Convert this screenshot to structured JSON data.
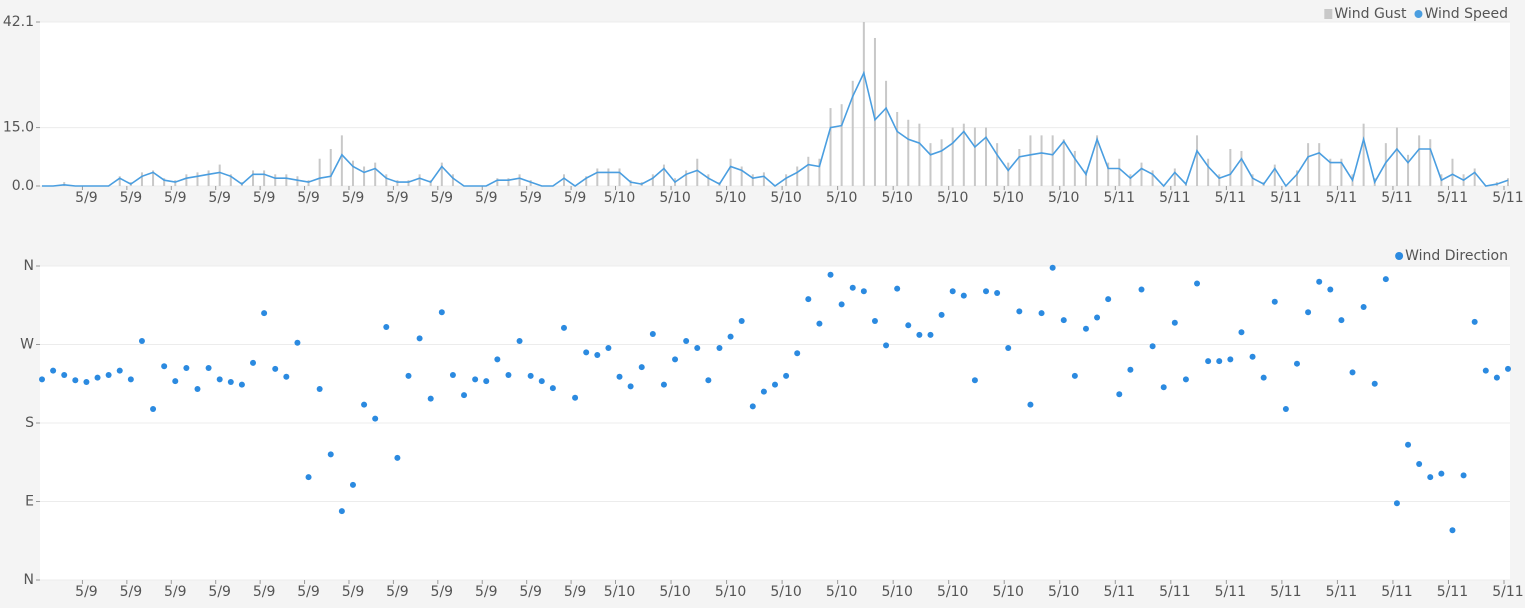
{
  "chart_data": [
    {
      "type": "combo",
      "categories": [
        null,
        null,
        null,
        null,
        "5/9",
        null,
        null,
        null,
        "5/9",
        null,
        null,
        null,
        "5/9",
        null,
        null,
        null,
        "5/9",
        null,
        null,
        null,
        "5/9",
        null,
        null,
        null,
        "5/9",
        null,
        null,
        null,
        "5/9",
        null,
        null,
        null,
        "5/9",
        null,
        null,
        null,
        "5/9",
        null,
        null,
        null,
        "5/9",
        null,
        null,
        null,
        "5/9",
        null,
        null,
        null,
        "5/9",
        null,
        null,
        null,
        "5/10",
        null,
        null,
        null,
        null,
        "5/10",
        null,
        null,
        null,
        null,
        "5/10",
        null,
        null,
        null,
        null,
        "5/10",
        null,
        null,
        null,
        null,
        "5/10",
        null,
        null,
        null,
        null,
        "5/10",
        null,
        null,
        null,
        null,
        "5/10",
        null,
        null,
        null,
        null,
        "5/10",
        null,
        null,
        null,
        null,
        "5/10",
        null,
        null,
        null,
        null,
        "5/11",
        null,
        null,
        null,
        null,
        "5/11",
        null,
        null,
        null,
        null,
        "5/11",
        null,
        null,
        null,
        null,
        "5/11",
        null,
        null,
        null,
        null,
        "5/11",
        null,
        null,
        null,
        null,
        "5/11",
        null,
        null,
        null,
        null,
        "5/11",
        null,
        null,
        null,
        null,
        "5/11"
      ],
      "ylim": [
        0,
        42.1
      ],
      "yticks": [
        {
          "value": 0,
          "label": "0.0"
        },
        {
          "value": 15,
          "label": "15.0"
        },
        {
          "value": 42.1,
          "label": "42.1"
        }
      ],
      "grid": true,
      "legend": "top-right",
      "series": [
        {
          "name": "Wind Gust",
          "type": "bar",
          "color": "#c8c8c8",
          "values": [
            0,
            0,
            1,
            0,
            0,
            0,
            0,
            2.5,
            1,
            3.5,
            4,
            2,
            1.5,
            3,
            3.5,
            4,
            5.5,
            3,
            1,
            4,
            4,
            3,
            3,
            2.5,
            1.5,
            7,
            9.5,
            13,
            6.5,
            5,
            6,
            3,
            1.5,
            1.5,
            3,
            1.5,
            6,
            3,
            0,
            0,
            0,
            2,
            2,
            3,
            1.5,
            0,
            0,
            3,
            0,
            2.5,
            4.5,
            4.5,
            4.5,
            1.5,
            1,
            3,
            5.5,
            2,
            4,
            7,
            3,
            1,
            7,
            5,
            3,
            3.5,
            0,
            3,
            5,
            7.5,
            7,
            20,
            21,
            27,
            42.1,
            38,
            27,
            19,
            17,
            16,
            11,
            12,
            15,
            16,
            15,
            15,
            11,
            6,
            9.5,
            13,
            13,
            13,
            12,
            9,
            4,
            13,
            6,
            7,
            3,
            6,
            4,
            0,
            4.5,
            1,
            13,
            7,
            3,
            9.5,
            9,
            3,
            1,
            5.5,
            0,
            4,
            11,
            11,
            7,
            7,
            3,
            16,
            2,
            11,
            15,
            8,
            13,
            12,
            3,
            7,
            3,
            4.5,
            0,
            1,
            2
          ]
        },
        {
          "name": "Wind Speed",
          "type": "line",
          "color": "#4a9ee0",
          "values": [
            0,
            0,
            0.3,
            0,
            0,
            0,
            0,
            2,
            0.5,
            2.5,
            3.5,
            1.5,
            1,
            2,
            2.5,
            3,
            3.5,
            2.5,
            0.5,
            3,
            3,
            2,
            2,
            1.5,
            1,
            2,
            2.5,
            8,
            5,
            3.5,
            4.5,
            2,
            1,
            1,
            2,
            1,
            5,
            2,
            0,
            0,
            0,
            1.5,
            1.5,
            2,
            1,
            0,
            0,
            2,
            0,
            2,
            3.5,
            3.5,
            3.5,
            1,
            0.5,
            2,
            4.5,
            1,
            3,
            4,
            2,
            0.5,
            5,
            4,
            2,
            2.5,
            0,
            2,
            3.5,
            5.5,
            5,
            15,
            15.5,
            23,
            29,
            17,
            20,
            14,
            12,
            11,
            8,
            9,
            11,
            14,
            10,
            12.5,
            8,
            4,
            7.5,
            8,
            8.5,
            8,
            11.5,
            7,
            3,
            12,
            4.5,
            4.5,
            2,
            4.5,
            3,
            0,
            3.5,
            0.5,
            9,
            5,
            2,
            3,
            7,
            2,
            0.5,
            4.5,
            0,
            3,
            7.5,
            8.5,
            6,
            6,
            1.5,
            12,
            1,
            6,
            9.5,
            6,
            9.5,
            9.5,
            1.5,
            3,
            1.5,
            3.5,
            0,
            0.5,
            1.5
          ]
        }
      ]
    },
    {
      "type": "scatter",
      "categories": [
        null,
        null,
        null,
        null,
        "5/9",
        null,
        null,
        null,
        "5/9",
        null,
        null,
        null,
        "5/9",
        null,
        null,
        null,
        "5/9",
        null,
        null,
        null,
        "5/9",
        null,
        null,
        null,
        "5/9",
        null,
        null,
        null,
        "5/9",
        null,
        null,
        null,
        "5/9",
        null,
        null,
        null,
        "5/9",
        null,
        null,
        null,
        "5/9",
        null,
        null,
        null,
        "5/9",
        null,
        null,
        null,
        "5/9",
        null,
        null,
        null,
        "5/10",
        null,
        null,
        null,
        null,
        "5/10",
        null,
        null,
        null,
        null,
        "5/10",
        null,
        null,
        null,
        null,
        "5/10",
        null,
        null,
        null,
        null,
        "5/10",
        null,
        null,
        null,
        null,
        "5/10",
        null,
        null,
        null,
        null,
        "5/10",
        null,
        null,
        null,
        null,
        "5/10",
        null,
        null,
        null,
        null,
        "5/10",
        null,
        null,
        null,
        null,
        "5/11",
        null,
        null,
        null,
        null,
        "5/11",
        null,
        null,
        null,
        null,
        "5/11",
        null,
        null,
        null,
        null,
        "5/11",
        null,
        null,
        null,
        null,
        "5/11",
        null,
        null,
        null,
        null,
        "5/11",
        null,
        null,
        null,
        null,
        "5/11",
        null,
        null,
        null,
        null,
        "5/11"
      ],
      "ylim": [
        0,
        360
      ],
      "yticks": [
        {
          "value": 0,
          "label": "N"
        },
        {
          "value": 90,
          "label": "E"
        },
        {
          "value": 180,
          "label": "S"
        },
        {
          "value": 270,
          "label": "W"
        },
        {
          "value": 360,
          "label": "N"
        }
      ],
      "grid": true,
      "legend": "top-right",
      "series": [
        {
          "name": "Wind Direction",
          "color": "#2b8ae0",
          "values": [
            230,
            240,
            235,
            229,
            227,
            232,
            235,
            240,
            230,
            274,
            196,
            245,
            228,
            243,
            219,
            243,
            230,
            227,
            224,
            249,
            306,
            242,
            233,
            272,
            118,
            219,
            144,
            79,
            109,
            201,
            185,
            290,
            140,
            234,
            277,
            208,
            307,
            235,
            212,
            230,
            228,
            253,
            235,
            274,
            234,
            228,
            220,
            289,
            209,
            261,
            258,
            266,
            233,
            222,
            244,
            282,
            224,
            253,
            274,
            266,
            229,
            266,
            279,
            297,
            199,
            216,
            224,
            234,
            260,
            322,
            294,
            350,
            316,
            335,
            331,
            297,
            269,
            334,
            292,
            281,
            281,
            304,
            331,
            326,
            229,
            331,
            329,
            266,
            308,
            201,
            306,
            358,
            298,
            234,
            288,
            301,
            322,
            213,
            241,
            333,
            268,
            221,
            295,
            230,
            340,
            251,
            251,
            253,
            284,
            256,
            232,
            319,
            196,
            248,
            307,
            342,
            333,
            298,
            238,
            313,
            225,
            345,
            88,
            155,
            133,
            118,
            122,
            57,
            120,
            296,
            240,
            232,
            242
          ]
        }
      ]
    }
  ]
}
